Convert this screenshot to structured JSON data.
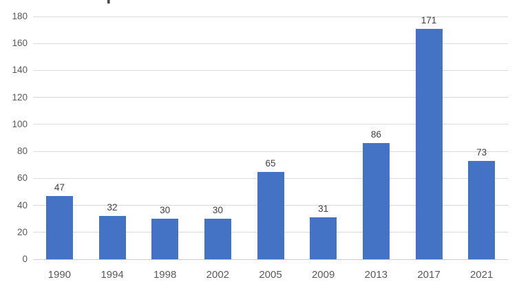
{
  "chart_data": {
    "type": "bar",
    "title": "",
    "categories": [
      "1990",
      "1994",
      "1998",
      "2002",
      "2005",
      "2009",
      "2013",
      "2017",
      "2021"
    ],
    "values": [
      47,
      32,
      30,
      30,
      65,
      31,
      86,
      171,
      73
    ],
    "value_labels": [
      "47",
      "32",
      "30",
      "30",
      "65",
      "31",
      "86",
      "171",
      "73"
    ],
    "xlabel": "",
    "ylabel": "",
    "ylim": [
      0,
      180
    ],
    "ytick_step": 20,
    "yticks": [
      "0",
      "20",
      "40",
      "60",
      "80",
      "100",
      "120",
      "140",
      "160",
      "180"
    ],
    "grid": "horizontal",
    "legend": "none",
    "colors": {
      "bar": "#4472C4",
      "gridline": "#D9D9D9",
      "axis_line": "#CFCDCD",
      "tick_label": "#595959",
      "value_label": "#404040",
      "background": "#FFFFFF",
      "title_fragment": "#4A4A4A"
    }
  },
  "icons": {
    "truncated_title_fragment": "▮"
  }
}
